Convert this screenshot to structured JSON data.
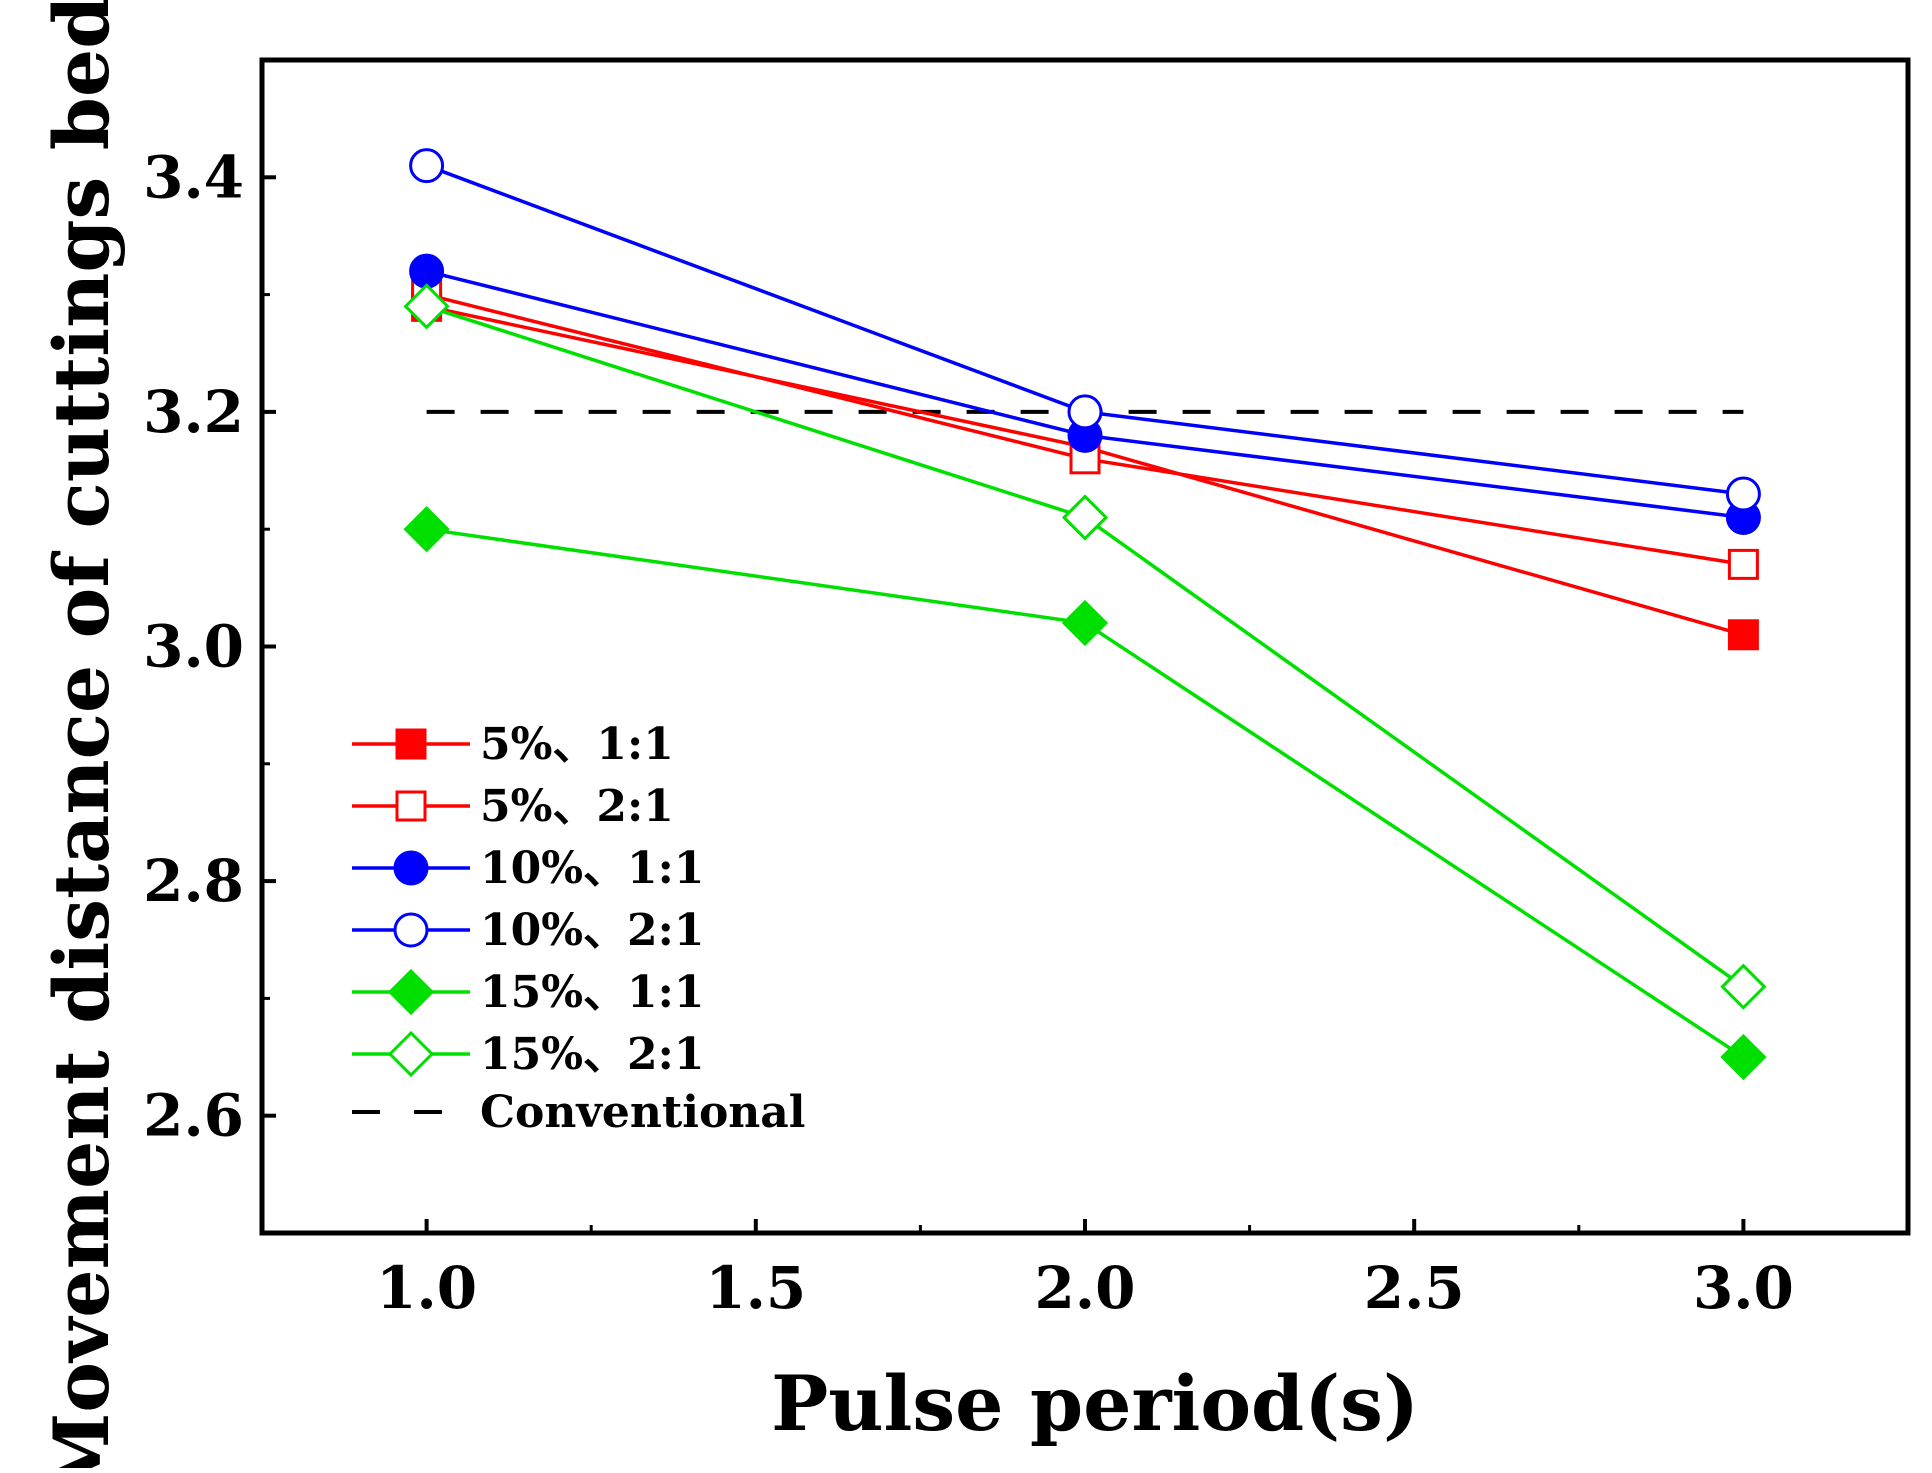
{
  "chart_data": {
    "type": "line",
    "title": "",
    "xlabel": "Pulse period(s)",
    "ylabel": "Movement distance of cuttings bed(m)",
    "xlim": [
      0.75,
      3.25
    ],
    "ylim": [
      2.5,
      3.5
    ],
    "x_ticks": [
      "1.0",
      "1.5",
      "2.0",
      "2.5",
      "3.0"
    ],
    "y_ticks": [
      "2.6",
      "2.8",
      "3.0",
      "3.2",
      "3.4"
    ],
    "x": [
      1.0,
      2.0,
      3.0
    ],
    "grid": false,
    "legend_position": "bottom-left",
    "series": [
      {
        "name": "5%、1:1",
        "values": [
          3.29,
          3.17,
          3.01
        ],
        "color": "#ff0000",
        "marker": "square",
        "filled": true
      },
      {
        "name": "5%、2:1",
        "values": [
          3.3,
          3.16,
          3.07
        ],
        "color": "#ff0000",
        "marker": "square",
        "filled": false
      },
      {
        "name": "10%、1:1",
        "values": [
          3.32,
          3.18,
          3.11
        ],
        "color": "#0000ff",
        "marker": "circle",
        "filled": true
      },
      {
        "name": "10%、2:1",
        "values": [
          3.41,
          3.2,
          3.13
        ],
        "color": "#0000ff",
        "marker": "circle",
        "filled": false
      },
      {
        "name": "15%、1:1",
        "values": [
          3.1,
          3.02,
          2.65
        ],
        "color": "#00e000",
        "marker": "diamond",
        "filled": true
      },
      {
        "name": "15%、2:1",
        "values": [
          3.29,
          3.11,
          2.71
        ],
        "color": "#00e000",
        "marker": "diamond",
        "filled": false
      }
    ],
    "reference_line": {
      "name": "Conventional",
      "value": 3.2,
      "x_range": [
        1.0,
        3.0
      ],
      "color": "#000000",
      "style": "dashed"
    }
  }
}
